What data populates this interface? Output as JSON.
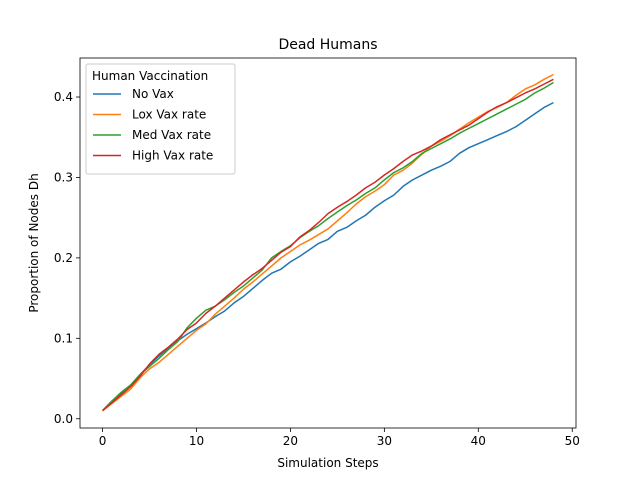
{
  "chart_data": {
    "type": "line",
    "title": "Dead Humans",
    "xlabel": "Simulation Steps",
    "ylabel": "Proportion of Nodes Dh",
    "xlim": [
      -2.4,
      50.4
    ],
    "ylim": [
      -0.0115,
      0.4485
    ],
    "xticks": [
      0,
      10,
      20,
      30,
      40,
      50
    ],
    "xtick_labels": [
      "0",
      "10",
      "20",
      "30",
      "40",
      "50"
    ],
    "yticks": [
      0.0,
      0.1,
      0.2,
      0.3,
      0.4
    ],
    "ytick_labels": [
      "0.0",
      "0.1",
      "0.2",
      "0.3",
      "0.4"
    ],
    "grid": false,
    "legend": {
      "title": "Human Vaccination",
      "position": "top-left"
    },
    "x": [
      0,
      1,
      2,
      3,
      4,
      5,
      6,
      7,
      8,
      9,
      10,
      11,
      12,
      13,
      14,
      15,
      16,
      17,
      18,
      19,
      20,
      21,
      22,
      23,
      24,
      25,
      26,
      27,
      28,
      29,
      30,
      31,
      32,
      33,
      34,
      35,
      36,
      37,
      38,
      39,
      40,
      41,
      42,
      43,
      44,
      45,
      46,
      47,
      48
    ],
    "series": [
      {
        "name": "No Vax",
        "color": "#1f77b4",
        "values": [
          0.01,
          0.022,
          0.032,
          0.042,
          0.055,
          0.067,
          0.078,
          0.088,
          0.097,
          0.105,
          0.112,
          0.119,
          0.127,
          0.134,
          0.144,
          0.152,
          0.162,
          0.172,
          0.181,
          0.186,
          0.195,
          0.202,
          0.21,
          0.218,
          0.223,
          0.233,
          0.238,
          0.246,
          0.253,
          0.263,
          0.271,
          0.278,
          0.289,
          0.297,
          0.303,
          0.309,
          0.314,
          0.32,
          0.33,
          0.337,
          0.342,
          0.347,
          0.352,
          0.357,
          0.363,
          0.371,
          0.379,
          0.387,
          0.393
        ]
      },
      {
        "name": "Lox Vax rate",
        "color": "#ff7f0e",
        "values": [
          0.01,
          0.019,
          0.028,
          0.037,
          0.051,
          0.062,
          0.07,
          0.08,
          0.09,
          0.1,
          0.11,
          0.118,
          0.13,
          0.14,
          0.15,
          0.161,
          0.17,
          0.18,
          0.19,
          0.2,
          0.208,
          0.216,
          0.222,
          0.229,
          0.236,
          0.246,
          0.256,
          0.267,
          0.276,
          0.283,
          0.291,
          0.303,
          0.309,
          0.318,
          0.329,
          0.339,
          0.345,
          0.352,
          0.36,
          0.368,
          0.375,
          0.382,
          0.387,
          0.393,
          0.402,
          0.41,
          0.415,
          0.422,
          0.428
        ]
      },
      {
        "name": "Med Vax rate",
        "color": "#2ca02c",
        "values": [
          0.01,
          0.022,
          0.033,
          0.042,
          0.055,
          0.065,
          0.075,
          0.086,
          0.096,
          0.113,
          0.125,
          0.135,
          0.14,
          0.148,
          0.157,
          0.165,
          0.175,
          0.185,
          0.2,
          0.208,
          0.215,
          0.225,
          0.233,
          0.24,
          0.249,
          0.257,
          0.265,
          0.272,
          0.28,
          0.287,
          0.297,
          0.306,
          0.312,
          0.32,
          0.33,
          0.336,
          0.342,
          0.348,
          0.355,
          0.361,
          0.367,
          0.373,
          0.379,
          0.385,
          0.391,
          0.397,
          0.405,
          0.411,
          0.418
        ]
      },
      {
        "name": "High Vax rate",
        "color": "#d62728",
        "values": [
          0.01,
          0.02,
          0.03,
          0.04,
          0.053,
          0.068,
          0.08,
          0.089,
          0.099,
          0.111,
          0.119,
          0.131,
          0.14,
          0.15,
          0.16,
          0.17,
          0.179,
          0.187,
          0.197,
          0.207,
          0.214,
          0.226,
          0.234,
          0.244,
          0.255,
          0.263,
          0.27,
          0.278,
          0.287,
          0.294,
          0.303,
          0.311,
          0.32,
          0.328,
          0.333,
          0.339,
          0.347,
          0.353,
          0.359,
          0.365,
          0.373,
          0.381,
          0.388,
          0.393,
          0.399,
          0.405,
          0.41,
          0.416,
          0.422
        ]
      }
    ]
  }
}
